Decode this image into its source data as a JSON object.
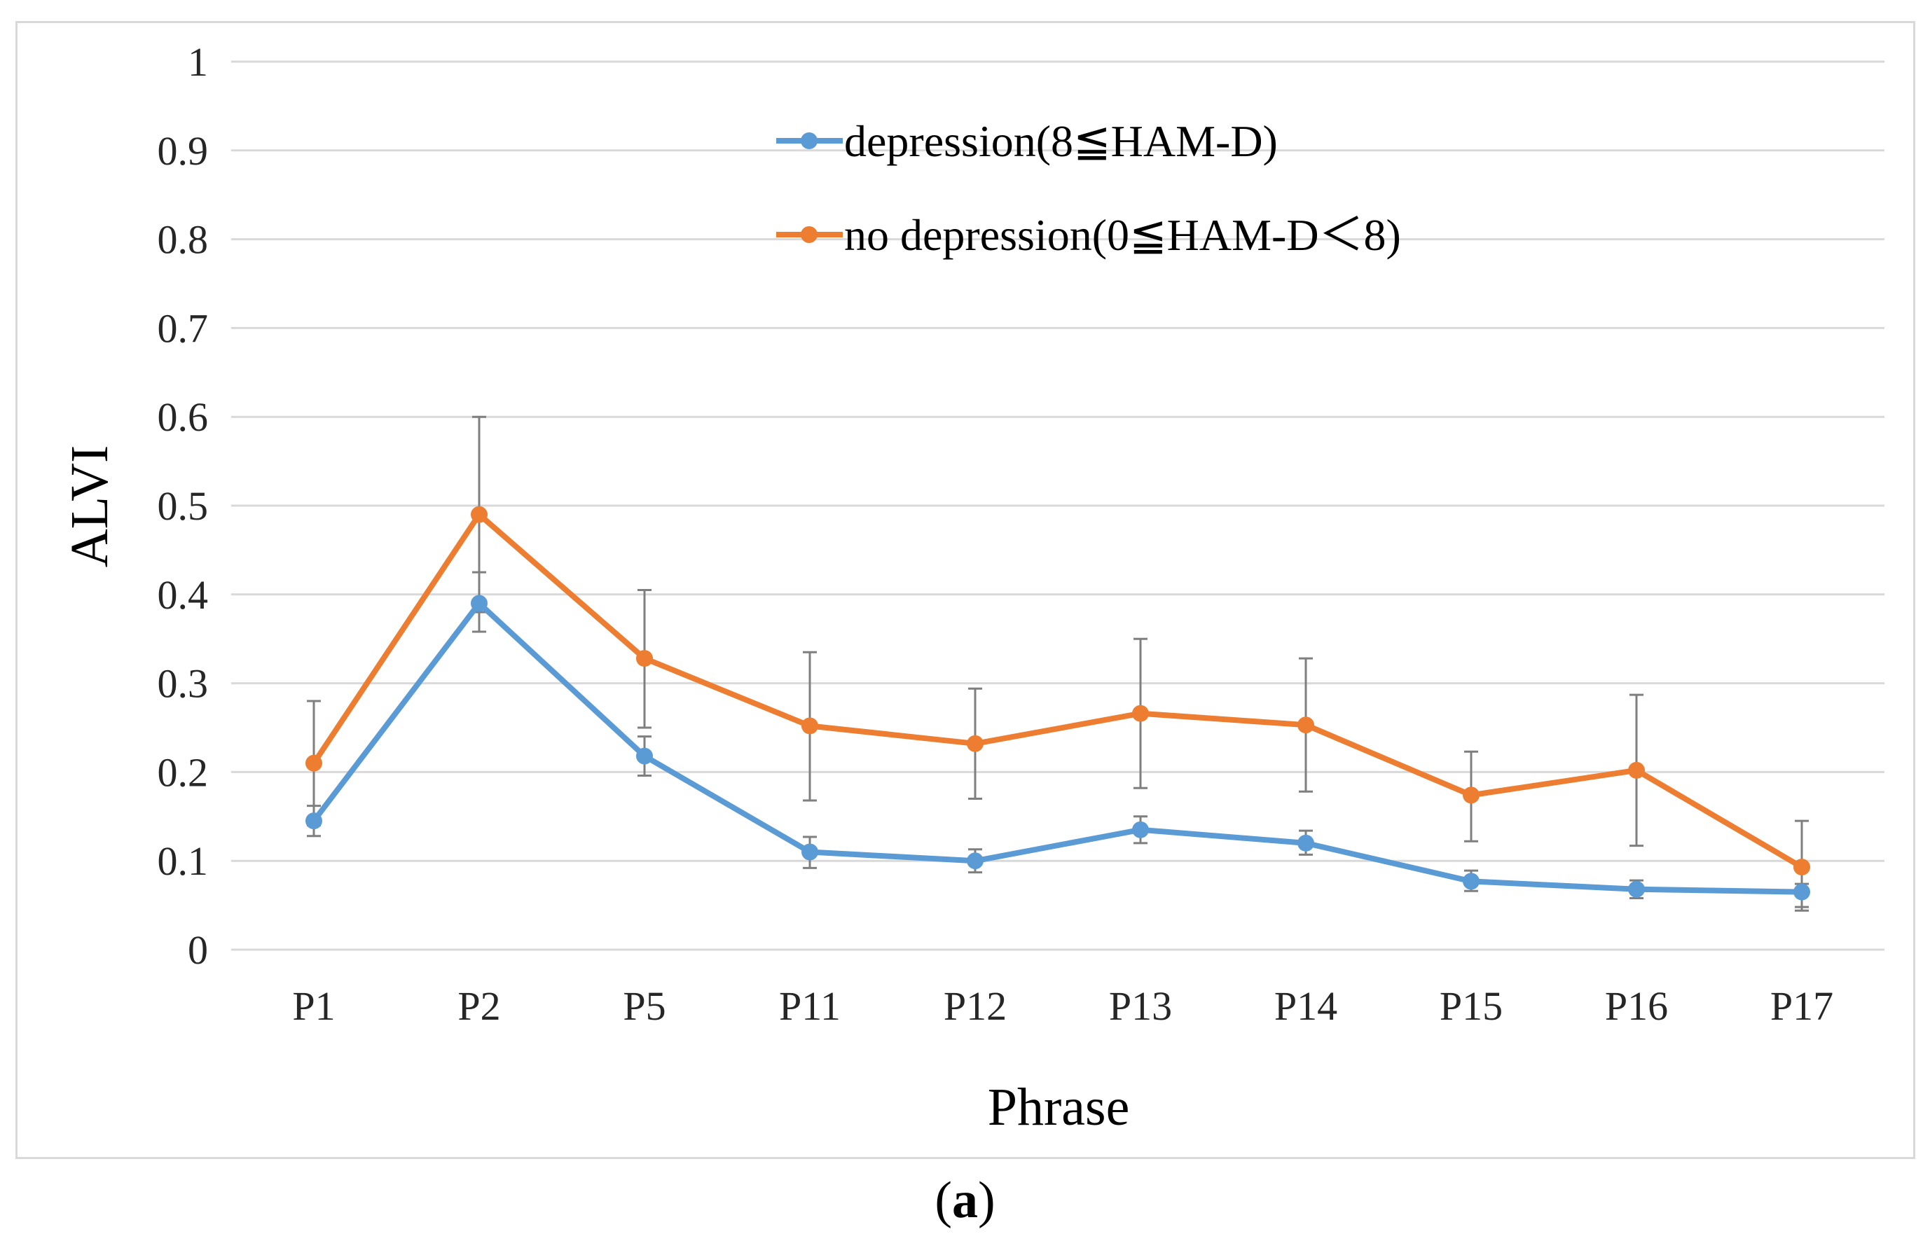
{
  "chart_data": {
    "type": "line",
    "title": "",
    "xlabel": "Phrase",
    "ylabel": "ALVI",
    "categories": [
      "P1",
      "P2",
      "P5",
      "P11",
      "P12",
      "P13",
      "P14",
      "P15",
      "P16",
      "P17"
    ],
    "ylim": [
      0,
      1
    ],
    "yticks": [
      "0",
      "0.1",
      "0.2",
      "0.3",
      "0.4",
      "0.5",
      "0.6",
      "0.7",
      "0.8",
      "0.9",
      "1"
    ],
    "grid": true,
    "legend_position": "top-center",
    "series": [
      {
        "name": "depression(8≦HAM-D)",
        "color": "#5b9bd5",
        "values": [
          0.145,
          0.39,
          0.218,
          0.11,
          0.1,
          0.135,
          0.12,
          0.077,
          0.068,
          0.065
        ],
        "error_low": [
          0.128,
          0.358,
          0.196,
          0.092,
          0.087,
          0.12,
          0.107,
          0.066,
          0.058,
          0.044
        ],
        "error_high": [
          0.162,
          0.425,
          0.24,
          0.127,
          0.113,
          0.15,
          0.134,
          0.089,
          0.078,
          0.074
        ]
      },
      {
        "name": "no depression(0≦HAM-D＜8)",
        "color": "#ed7d31",
        "values": [
          0.21,
          0.49,
          0.328,
          0.252,
          0.232,
          0.266,
          0.253,
          0.174,
          0.202,
          0.093
        ],
        "error_low": [
          0.14,
          0.38,
          0.25,
          0.168,
          0.17,
          0.182,
          0.178,
          0.122,
          0.117,
          0.048
        ],
        "error_high": [
          0.28,
          0.6,
          0.405,
          0.335,
          0.294,
          0.35,
          0.328,
          0.223,
          0.287,
          0.145
        ]
      }
    ]
  },
  "caption": {
    "open": "(",
    "letter": "a",
    "close": ")"
  }
}
